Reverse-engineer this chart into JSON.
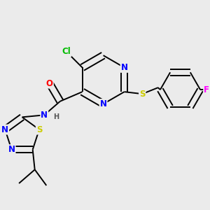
{
  "bg_color": "#ebebeb",
  "bond_color": "#000000",
  "atom_colors": {
    "Cl": "#00bb00",
    "O": "#ff0000",
    "N": "#0000ff",
    "S": "#cccc00",
    "F": "#ff00ff",
    "H": "#555555",
    "C": "#000000"
  },
  "font_size": 8.5,
  "fig_width": 3.0,
  "fig_height": 3.0,
  "dpi": 100
}
